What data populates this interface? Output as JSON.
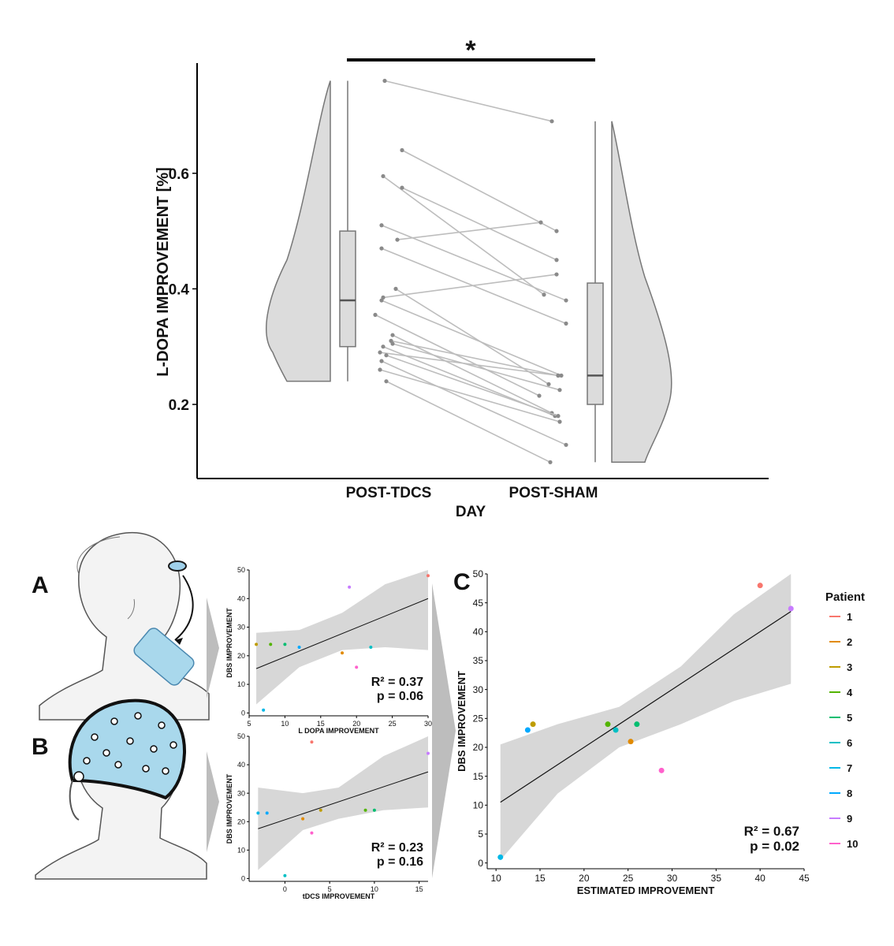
{
  "chart_data": [
    {
      "type": "raincloud",
      "ylabel": "L-DOPA IMPROVEMENT [%]",
      "xlabel": "DAY",
      "categories": [
        "POST-TDCS",
        "POST-SHAM"
      ],
      "y_ticks": [
        0.2,
        0.4,
        0.6
      ],
      "ylim": [
        0.06,
        0.82
      ],
      "significance_marker": "*",
      "box": {
        "POST-TDCS": {
          "min": 0.24,
          "q1": 0.3,
          "median": 0.38,
          "q3": 0.5,
          "max": 0.76
        },
        "POST-SHAM": {
          "min": 0.1,
          "q1": 0.2,
          "median": 0.25,
          "q3": 0.41,
          "max": 0.69
        }
      },
      "paired_points": [
        [
          0.76,
          0.69
        ],
        [
          0.64,
          0.5
        ],
        [
          0.595,
          0.39
        ],
        [
          0.575,
          0.45
        ],
        [
          0.51,
          0.38
        ],
        [
          0.485,
          0.515
        ],
        [
          0.47,
          0.34
        ],
        [
          0.4,
          0.235
        ],
        [
          0.385,
          0.425
        ],
        [
          0.38,
          0.25
        ],
        [
          0.355,
          0.215
        ],
        [
          0.31,
          0.25
        ],
        [
          0.3,
          0.18
        ],
        [
          0.305,
          0.225
        ],
        [
          0.32,
          0.185
        ],
        [
          0.29,
          0.25
        ],
        [
          0.285,
          0.18
        ],
        [
          0.275,
          0.13
        ],
        [
          0.24,
          0.1
        ],
        [
          0.26,
          0.17
        ]
      ]
    },
    {
      "panel": "A",
      "type": "scatter",
      "xlabel": "L DOPA IMPROVEMENT",
      "ylabel": "DBS IMPROVEMENT",
      "x_ticks": [
        5,
        10,
        15,
        20,
        25,
        30
      ],
      "y_ticks": [
        0,
        10,
        20,
        30,
        40,
        50
      ],
      "xlim": [
        5,
        30
      ],
      "ylim": [
        -1,
        50
      ],
      "points": [
        {
          "patient": "1",
          "x": 30,
          "y": 48
        },
        {
          "patient": "2",
          "x": 18,
          "y": 21
        },
        {
          "patient": "3",
          "x": 6,
          "y": 24
        },
        {
          "patient": "4",
          "x": 8,
          "y": 24
        },
        {
          "patient": "5",
          "x": 10,
          "y": 24
        },
        {
          "patient": "6",
          "x": 22,
          "y": 23
        },
        {
          "patient": "7",
          "x": 7,
          "y": 1
        },
        {
          "patient": "8",
          "x": 12,
          "y": 23
        },
        {
          "patient": "9",
          "x": 19,
          "y": 44
        },
        {
          "patient": "10",
          "x": 20,
          "y": 16
        }
      ],
      "fit_line": [
        [
          6,
          15.5
        ],
        [
          30,
          40
        ]
      ],
      "band_upper": [
        [
          6,
          28
        ],
        [
          12,
          29
        ],
        [
          18,
          35
        ],
        [
          24,
          45
        ],
        [
          30,
          50
        ]
      ],
      "band_lower": [
        [
          6,
          3
        ],
        [
          12,
          16
        ],
        [
          18,
          22
        ],
        [
          24,
          23
        ],
        [
          30,
          22
        ]
      ],
      "annotation": [
        "R² = 0.37",
        "p = 0.06"
      ]
    },
    {
      "panel": "B",
      "type": "scatter",
      "xlabel": "tDCS IMPROVEMENT",
      "ylabel": "DBS IMPROVEMENT",
      "x_ticks": [
        0,
        5,
        10,
        15
      ],
      "y_ticks": [
        0,
        10,
        20,
        30,
        40,
        50
      ],
      "xlim": [
        -4,
        16
      ],
      "ylim": [
        -1,
        50
      ],
      "points": [
        {
          "patient": "1",
          "x": 3,
          "y": 48
        },
        {
          "patient": "2",
          "x": 2,
          "y": 21
        },
        {
          "patient": "3",
          "x": 4,
          "y": 24
        },
        {
          "patient": "4",
          "x": 9,
          "y": 24
        },
        {
          "patient": "5",
          "x": 10,
          "y": 24
        },
        {
          "patient": "6",
          "x": 0,
          "y": 1
        },
        {
          "patient": "7",
          "x": -3,
          "y": 23
        },
        {
          "patient": "8",
          "x": -2,
          "y": 23
        },
        {
          "patient": "9",
          "x": 16,
          "y": 44
        },
        {
          "patient": "10",
          "x": 3,
          "y": 16
        }
      ],
      "fit_line": [
        [
          -3,
          17.5
        ],
        [
          16,
          37.5
        ]
      ],
      "band_upper": [
        [
          -3,
          32
        ],
        [
          2,
          30
        ],
        [
          6,
          32
        ],
        [
          11,
          43
        ],
        [
          16,
          50
        ]
      ],
      "band_lower": [
        [
          -3,
          3
        ],
        [
          2,
          17
        ],
        [
          6,
          21
        ],
        [
          11,
          24
        ],
        [
          16,
          25
        ]
      ],
      "annotation": [
        "R² = 0.23",
        "p = 0.16"
      ]
    },
    {
      "panel": "C",
      "type": "scatter",
      "xlabel": "ESTIMATED IMPROVEMENT",
      "ylabel": "DBS IMPROVEMENT",
      "x_ticks": [
        10,
        15,
        20,
        25,
        30,
        35,
        40,
        45
      ],
      "y_ticks": [
        0,
        5,
        10,
        15,
        20,
        25,
        30,
        35,
        40,
        45,
        50
      ],
      "xlim": [
        9,
        45
      ],
      "ylim": [
        -1,
        50
      ],
      "points": [
        {
          "patient": "1",
          "x": 40,
          "y": 48
        },
        {
          "patient": "2",
          "x": 25.3,
          "y": 21
        },
        {
          "patient": "3",
          "x": 14.2,
          "y": 24
        },
        {
          "patient": "4",
          "x": 22.7,
          "y": 24
        },
        {
          "patient": "5",
          "x": 26,
          "y": 24
        },
        {
          "patient": "6",
          "x": 23.6,
          "y": 23
        },
        {
          "patient": "7",
          "x": 10.5,
          "y": 1
        },
        {
          "patient": "8",
          "x": 13.6,
          "y": 23
        },
        {
          "patient": "9",
          "x": 43.5,
          "y": 44
        },
        {
          "patient": "10",
          "x": 28.8,
          "y": 16
        }
      ],
      "fit_line": [
        [
          10.5,
          10.5
        ],
        [
          43.5,
          43.5
        ]
      ],
      "band_upper": [
        [
          10.5,
          20.5
        ],
        [
          17,
          24
        ],
        [
          24,
          27
        ],
        [
          31,
          34
        ],
        [
          37,
          43
        ],
        [
          43.5,
          50
        ]
      ],
      "band_lower": [
        [
          10.5,
          0.5
        ],
        [
          17,
          12
        ],
        [
          24,
          20
        ],
        [
          31,
          24
        ],
        [
          37,
          28
        ],
        [
          43.5,
          31
        ]
      ],
      "annotation": [
        "R² = 0.67",
        "p = 0.02"
      ]
    }
  ],
  "panel_labels": [
    "A",
    "B",
    "C"
  ],
  "legend": {
    "title": "Patient",
    "entries": [
      {
        "label": "1",
        "color": "#F8766D"
      },
      {
        "label": "2",
        "color": "#E18A00"
      },
      {
        "label": "3",
        "color": "#BE9C00"
      },
      {
        "label": "4",
        "color": "#53B400"
      },
      {
        "label": "5",
        "color": "#00BE70"
      },
      {
        "label": "6",
        "color": "#00BFC4"
      },
      {
        "label": "7",
        "color": "#00B8E7"
      },
      {
        "label": "8",
        "color": "#00A9FF"
      },
      {
        "label": "9",
        "color": "#C77CFF"
      },
      {
        "label": "10",
        "color": "#FF61CC"
      }
    ]
  }
}
